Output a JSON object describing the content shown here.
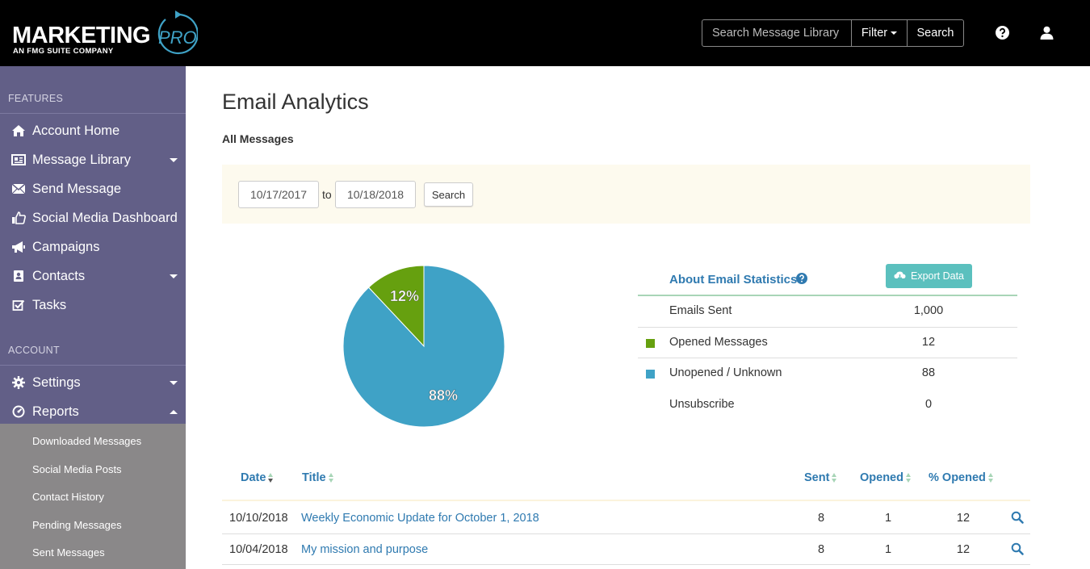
{
  "header": {
    "logo_main": "MARKETING",
    "logo_pro": "PRO",
    "logo_sub": "AN FMG SUITE COMPANY",
    "search_placeholder": "Search Message Library",
    "filter_label": "Filter",
    "search_label": "Search",
    "help_icon": "question-circle-icon",
    "user_icon": "user-icon"
  },
  "sidebar": {
    "features_heading": "FEATURES",
    "account_heading": "ACCOUNT",
    "features": [
      {
        "label": "Account Home",
        "icon": "home-icon"
      },
      {
        "label": "Message Library",
        "icon": "newspaper-icon",
        "dropdown": true
      },
      {
        "label": "Send Message",
        "icon": "envelope-icon"
      },
      {
        "label": "Social Media Dashboard",
        "icon": "thumbs-up-icon"
      },
      {
        "label": "Campaigns",
        "icon": "bullhorn-icon"
      },
      {
        "label": "Contacts",
        "icon": "address-book-icon",
        "dropdown": true
      },
      {
        "label": "Tasks",
        "icon": "check-square-icon"
      }
    ],
    "account": [
      {
        "label": "Settings",
        "icon": "gear-icon",
        "dropdown": true
      },
      {
        "label": "Reports",
        "icon": "dashboard-icon",
        "expanded": true
      }
    ],
    "reports_subitems": [
      "Downloaded Messages",
      "Social Media Posts",
      "Contact History",
      "Pending Messages",
      "Sent Messages"
    ]
  },
  "main": {
    "title": "Email Analytics",
    "subtitle": "All Messages",
    "date_from": "10/17/2017",
    "to_label": "to",
    "date_to": "10/18/2018",
    "search_button": "Search"
  },
  "chart_data": {
    "type": "pie",
    "slices": [
      {
        "label": "Opened Messages",
        "value": 12,
        "display": "12%",
        "color": "#66a00f"
      },
      {
        "label": "Unopened / Unknown",
        "value": 88,
        "display": "88%",
        "color": "#3fa2c6"
      }
    ]
  },
  "stats": {
    "title": "About Email Statistics",
    "export_label": "Export Data",
    "rows": [
      {
        "label": "Emails Sent",
        "value": "1,000",
        "color": null
      },
      {
        "label": "Opened Messages",
        "value": "12",
        "color": "#66a00f"
      },
      {
        "label": "Unopened / Unknown",
        "value": "88",
        "color": "#3fa2c6"
      },
      {
        "label": "Unsubscribe",
        "value": "0",
        "color": null
      }
    ]
  },
  "table": {
    "columns": {
      "date": "Date",
      "title": "Title",
      "sent": "Sent",
      "opened": "Opened",
      "pct_opened": "% Opened"
    },
    "rows": [
      {
        "date": "10/10/2018",
        "title": "Weekly Economic Update for October 1, 2018",
        "sent": "8",
        "opened": "1",
        "pct_opened": "12"
      },
      {
        "date": "10/04/2018",
        "title": "My mission and purpose",
        "sent": "8",
        "opened": "1",
        "pct_opened": "12"
      }
    ]
  }
}
